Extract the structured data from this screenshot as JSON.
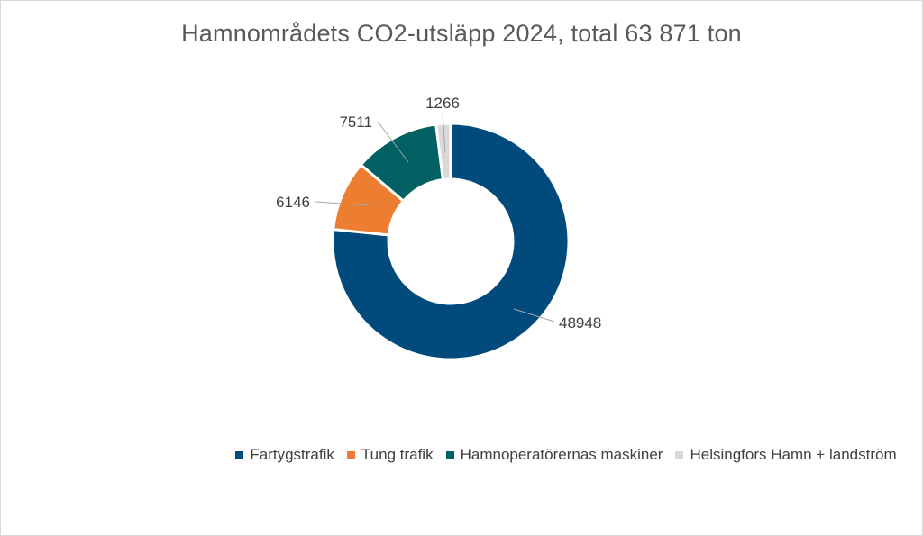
{
  "chart_data": {
    "type": "pie",
    "variant": "donut",
    "title": "Hamnområdets CO2-utsläpp 2024, total 63 871 ton",
    "categories": [
      "Fartygstrafik",
      "Tung trafik",
      "Hamnoperatörernas maskiner",
      "Helsingfors Hamn + landström"
    ],
    "values": [
      48948,
      6146,
      7511,
      1266
    ],
    "data_labels": [
      "48948",
      "6146",
      "7511",
      "1266"
    ],
    "colors": [
      "#004b7c",
      "#ed7d31",
      "#006064",
      "#d9d9d9"
    ],
    "legend_position": "bottom",
    "start_angle": "top, clockwise"
  }
}
